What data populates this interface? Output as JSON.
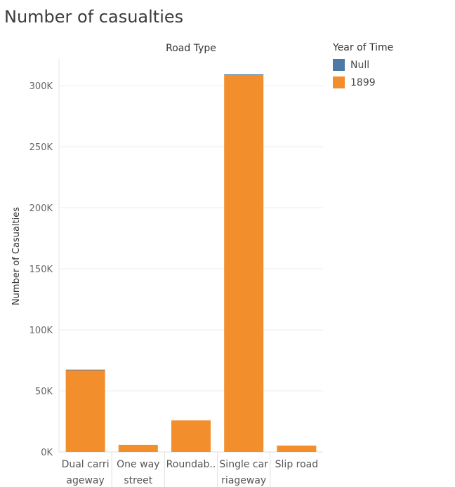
{
  "title": "Number of casualties",
  "chart_data": {
    "type": "bar",
    "stacked": true,
    "column_header": "Road Type",
    "ylabel": "Number of Casualties",
    "ylim": [
      0,
      320000
    ],
    "yticks": [
      0,
      50000,
      100000,
      150000,
      200000,
      250000,
      300000
    ],
    "ytick_labels": [
      "0K",
      "50K",
      "100K",
      "150K",
      "200K",
      "250K",
      "300K"
    ],
    "grid": true,
    "categories": [
      {
        "label": [
          "Dual carri",
          "ageway"
        ]
      },
      {
        "label": [
          "One way",
          "street"
        ]
      },
      {
        "label": [
          "Roundab.."
        ]
      },
      {
        "label": [
          "Single car",
          "riageway"
        ]
      },
      {
        "label": [
          "Slip road"
        ]
      }
    ],
    "series": [
      {
        "name": "1899",
        "color": "#F28E2B",
        "values": [
          67000,
          5800,
          25800,
          308500,
          5200
        ]
      },
      {
        "name": "Null",
        "color": "#4E79A7",
        "values": [
          400,
          0,
          0,
          700,
          0
        ]
      }
    ]
  },
  "legend": {
    "title": "Year of Time",
    "placement": "right",
    "items": [
      {
        "label": "Null",
        "color": "#4E79A7"
      },
      {
        "label": "1899",
        "color": "#F28E2B"
      }
    ]
  }
}
